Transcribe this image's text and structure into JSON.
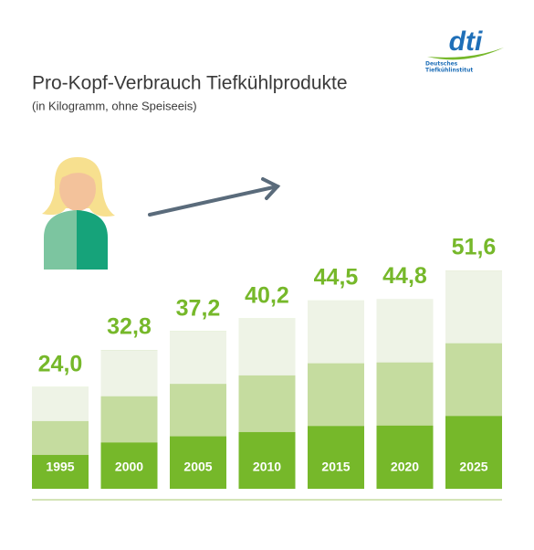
{
  "chart_data": {
    "type": "bar",
    "title": "Pro-Kopf-Verbrauch Tiefkühlprodukte",
    "subtitle": "(in Kilogramm, ohne Speiseeis)",
    "categories": [
      "1995",
      "2000",
      "2005",
      "2010",
      "2015",
      "2020",
      "2025"
    ],
    "values": [
      24.0,
      32.8,
      37.2,
      40.2,
      44.5,
      44.8,
      51.6
    ],
    "value_labels": [
      "24,0",
      "32,8",
      "37,2",
      "40,2",
      "44,5",
      "44,8",
      "51,6"
    ],
    "color": "#76b82a"
  },
  "logo": {
    "mark": "dti",
    "lines": [
      "Deutsches",
      "Tiefkühlinstitut"
    ]
  }
}
